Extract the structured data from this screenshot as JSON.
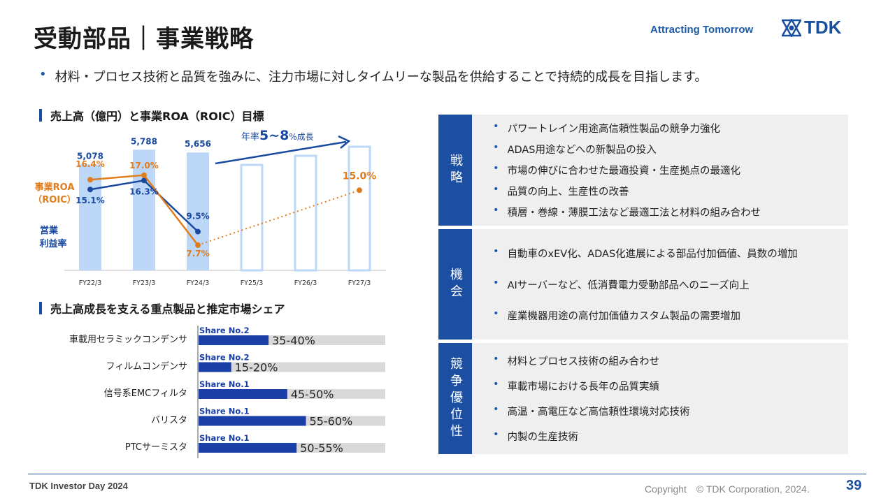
{
  "header": {
    "title": "受動部品｜事業戦略",
    "tagline": "Attracting Tomorrow",
    "logo_text": "TDK",
    "subtitle": "材料・プロセス技術と品質を強みに、注力市場に対しタイムリーな製品を供給することで持続的成長を目指します。"
  },
  "sections": {
    "chart_title": "売上高（億円）と事業ROA（ROIC）目標",
    "share_title": "売上高成長を支える重点製品と推定市場シェア"
  },
  "chart_data": [
    {
      "type": "bar",
      "categories": [
        "FY22/3",
        "FY23/3",
        "FY24/3",
        "FY25/3",
        "FY26/3",
        "FY27/3"
      ],
      "series": [
        {
          "values": [
            5078,
            5788,
            5656,
            null,
            null,
            null
          ],
          "value_labels": [
            "5,078",
            "5,788",
            "5,656",
            "",
            "",
            ""
          ],
          "color": "#bcd7f7"
        },
        {
          "name": "事業ROA（ROIC）",
          "values": [
            16.4,
            17.0,
            7.7,
            null,
            null,
            15.0
          ],
          "value_labels": [
            "16.4%",
            "17.0%",
            "7.7%",
            "",
            "",
            "15.0%"
          ],
          "color": "#e07d1d",
          "type": "line"
        },
        {
          "name": "営業利益率",
          "values": [
            15.1,
            16.3,
            9.5,
            null,
            null,
            null
          ],
          "value_labels": [
            "15.1%",
            "16.3%",
            "9.5%",
            "",
            "",
            ""
          ],
          "color": "#1a4aa0",
          "type": "line"
        }
      ],
      "forecast_outline": [
        "FY25/3",
        "FY26/3",
        "FY27/3"
      ],
      "growth_annotation": {
        "prefix": "年率",
        "value": "5~8",
        "suffix": "%成長"
      },
      "roa_label_line1": "事業ROA",
      "roa_label_line2": "（ROIC）",
      "margin_label_line1": "営業",
      "margin_label_line2": "利益率"
    },
    {
      "type": "bar",
      "orientation": "horizontal",
      "categories": [
        "車載用セラミックコンデンサ",
        "フィルムコンデンサ",
        "信号系EMCフィルタ",
        "バリスタ",
        "PTCサーミスタ"
      ],
      "share_labels": [
        "Share No.2",
        "Share No.2",
        "Share No.1",
        "Share No.1",
        "Share No.1"
      ],
      "value_labels": [
        "35-40%",
        "15-20%",
        "45-50%",
        "55-60%",
        "50-55%"
      ],
      "values": [
        37.5,
        17.5,
        47.5,
        57.5,
        52.5
      ],
      "colors": {
        "bar": "#1a3fa6",
        "track": "#d9d9d9"
      }
    }
  ],
  "panels": [
    {
      "label": "戦略",
      "items": [
        "パワートレイン用途高信頼性製品の競争力強化",
        "ADAS用途などへの新製品の投入",
        "市場の伸びに合わせた最適投資・生産拠点の最適化",
        "品質の向上、生産性の改善",
        "積層・巻線・薄膜工法など最適工法と材料の組み合わせ"
      ]
    },
    {
      "label": "機会",
      "items": [
        "自動車のxEV化、ADAS化進展による部品付加価値、員数の増加",
        "AIサーバーなど、低消費電力受動部品へのニーズ向上",
        "産業機器用途の高付加価値カスタム製品の需要増加"
      ]
    },
    {
      "label": "競争優位性",
      "items": [
        "材料とプロセス技術の組み合わせ",
        "車載市場における長年の品質実績",
        "高温・高電圧など高信頼性環境対応技術",
        "内製の生産技術"
      ]
    }
  ],
  "footer": {
    "left": "TDK Investor Day 2024",
    "copyright": "Copyright　© TDK Corporation, 2024.",
    "page": "39"
  },
  "colors": {
    "brand": "#1a4f9e",
    "panel_label": "#1c4ea2",
    "panel_bg": "#efefef",
    "orange": "#e07d1d"
  }
}
